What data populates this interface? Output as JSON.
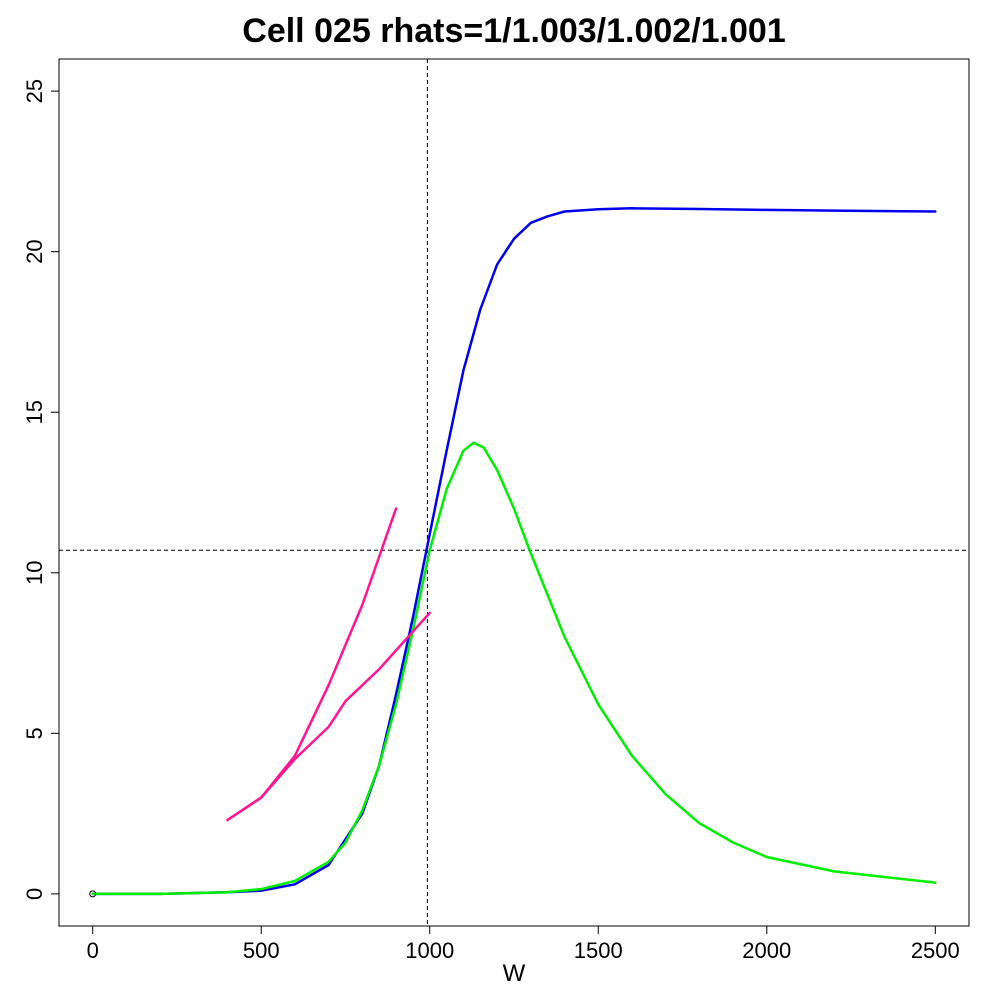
{
  "chart_data": {
    "type": "line",
    "title": "Cell 025 rhats=1/1.003/1.002/1.001",
    "xlabel": "W",
    "ylabel": "",
    "xlim": [
      -100,
      2600
    ],
    "ylim": [
      -1,
      26
    ],
    "xticks": [
      0,
      500,
      1000,
      1500,
      2000,
      2500
    ],
    "yticks": [
      0,
      5,
      10,
      15,
      20,
      25
    ],
    "grid": false,
    "reference_lines": {
      "vertical_x": 993,
      "horizontal_y": 10.7
    },
    "point": {
      "x": 0,
      "y": 0
    },
    "series": [
      {
        "color": "#0000ee",
        "x": [
          0,
          200,
          400,
          500,
          600,
          700,
          800,
          850,
          900,
          950,
          1000,
          1050,
          1100,
          1150,
          1200,
          1250,
          1300,
          1350,
          1400,
          1500,
          1600,
          1800,
          2000,
          2200,
          2500
        ],
        "y": [
          0,
          0,
          0.05,
          0.1,
          0.3,
          0.9,
          2.5,
          4.0,
          6.2,
          8.6,
          11.2,
          13.8,
          16.3,
          18.2,
          19.6,
          20.4,
          20.9,
          21.1,
          21.25,
          21.32,
          21.35,
          21.33,
          21.3,
          21.28,
          21.25
        ]
      },
      {
        "color": "#00ee00",
        "x": [
          0,
          200,
          400,
          500,
          600,
          700,
          750,
          800,
          850,
          900,
          950,
          1000,
          1050,
          1100,
          1130,
          1160,
          1200,
          1250,
          1300,
          1400,
          1500,
          1600,
          1700,
          1800,
          1900,
          2000,
          2200,
          2500
        ],
        "y": [
          0,
          0,
          0.05,
          0.15,
          0.4,
          1.0,
          1.6,
          2.6,
          4.0,
          5.9,
          8.2,
          10.7,
          12.6,
          13.8,
          14.05,
          13.9,
          13.2,
          12.0,
          10.6,
          8.0,
          5.9,
          4.3,
          3.1,
          2.2,
          1.6,
          1.15,
          0.7,
          0.35
        ]
      },
      {
        "color": "#ff1493",
        "x": [
          400,
          500,
          600,
          700,
          800,
          900
        ],
        "y": [
          2.3,
          3.0,
          4.3,
          6.5,
          9.0,
          12.0
        ]
      },
      {
        "color": "#ff1493",
        "x": [
          400,
          500,
          600,
          700,
          750,
          850,
          1000
        ],
        "y": [
          2.3,
          3.0,
          4.2,
          5.2,
          6.0,
          7.0,
          8.75
        ]
      }
    ]
  }
}
